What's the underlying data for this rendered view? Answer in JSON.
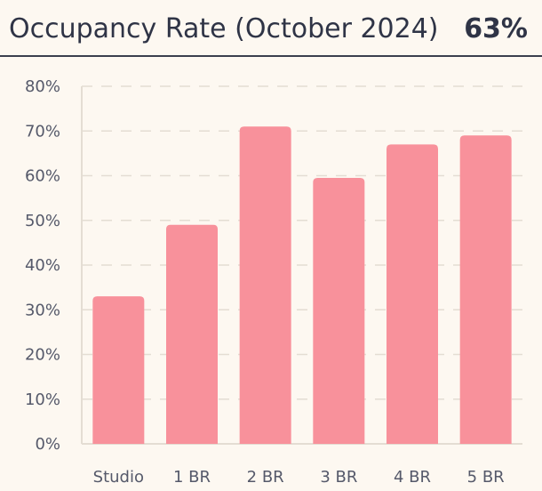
{
  "header": {
    "title": "Occupancy Rate (October 2024)",
    "kpi_value": "63%"
  },
  "colors": {
    "background": "#fdf8f1",
    "bar": "#f8919b",
    "grid": "#e4ddd3",
    "axis_text": "#55596a",
    "title_text": "#2f3446"
  },
  "chart_data": {
    "type": "bar",
    "title": "Occupancy Rate (October 2024)",
    "xlabel": "",
    "ylabel": "",
    "categories": [
      "Studio",
      "1 BR",
      "2 BR",
      "3 BR",
      "4 BR",
      "5 BR"
    ],
    "values": [
      33,
      49,
      71,
      59.5,
      67,
      69
    ],
    "unit": "%",
    "ylim": [
      0,
      80
    ],
    "yticks": [
      "0%",
      "10%",
      "20%",
      "30%",
      "40%",
      "50%",
      "60%",
      "70%",
      "80%"
    ],
    "grid": true,
    "legend": "none"
  }
}
